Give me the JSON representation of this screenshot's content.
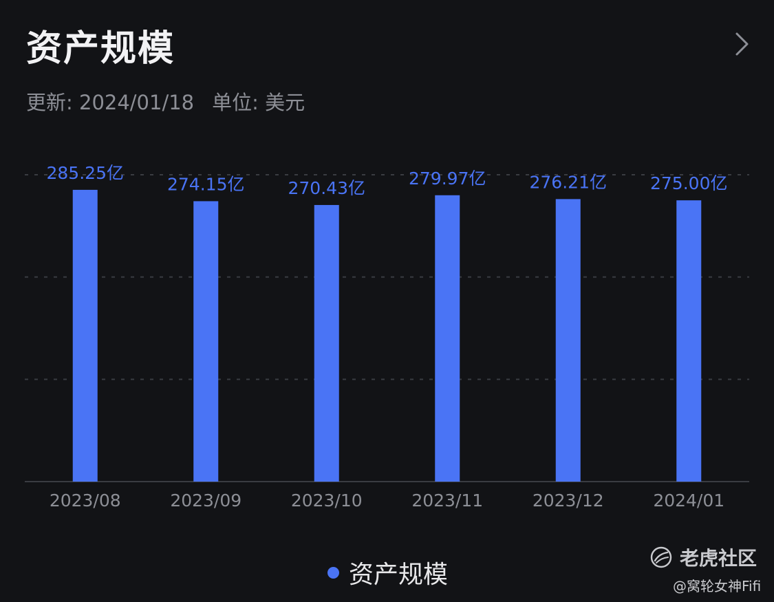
{
  "header": {
    "title": "资产规模",
    "chevron_icon": "chevron-right-icon"
  },
  "subheader": {
    "updated": "更新: 2024/01/18",
    "unit": "单位: 美元"
  },
  "colors": {
    "bar": "#4a74f5",
    "label": "#4a74f5",
    "background": "#121316",
    "grid": "#3a3c42",
    "axis_text": "#8d8f96"
  },
  "chart_data": {
    "type": "bar",
    "categories": [
      "2023/08",
      "2023/09",
      "2023/10",
      "2023/11",
      "2023/12",
      "2024/01"
    ],
    "series": [
      {
        "name": "资产规模",
        "values": [
          285.25,
          274.15,
          270.43,
          279.97,
          276.21,
          275.0
        ]
      }
    ],
    "data_labels": [
      "285.25亿",
      "274.15亿",
      "270.43亿",
      "279.97亿",
      "276.21亿",
      "275.00亿"
    ],
    "unit": "亿",
    "ylim": [
      0,
      300
    ],
    "grid": true,
    "legend_position": "bottom"
  },
  "watermark": {
    "brand": "老虎社区",
    "brand_icon": "tiger-community-logo-icon",
    "user": "@窝轮女神Fifi"
  }
}
